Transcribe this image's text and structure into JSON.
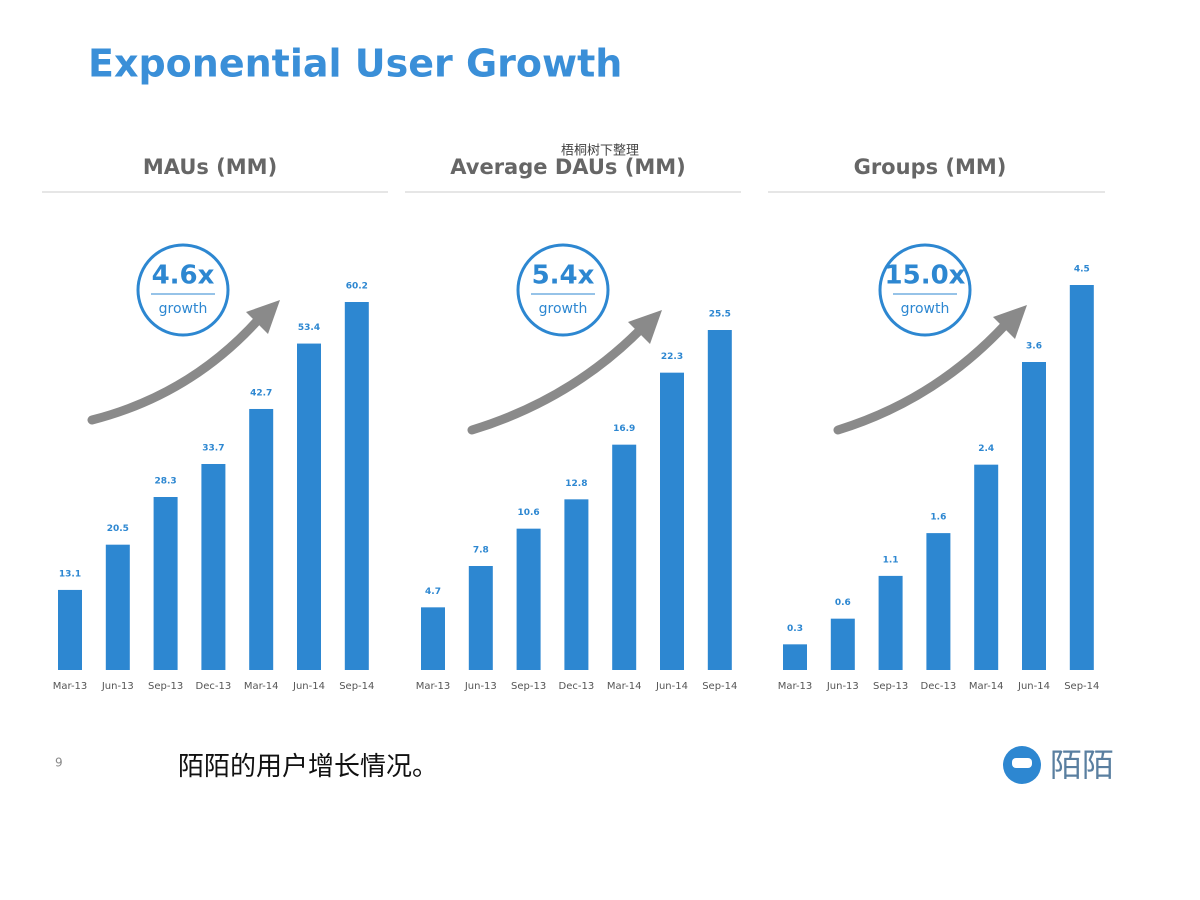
{
  "title": "Exponential User Growth",
  "watermark": "梧桐树下整理",
  "page_number": "9",
  "caption": "陌陌的用户增长情况。",
  "logo": "陌陌",
  "chart_data": [
    {
      "type": "bar",
      "title": "MAUs (MM)",
      "badge": "4.6x",
      "badge_caption": "growth",
      "color": "#2d87d1",
      "categories": [
        "Mar-13",
        "Jun-13",
        "Sep-13",
        "Dec-13",
        "Mar-14",
        "Jun-14",
        "Sep-14"
      ],
      "values": [
        13.1,
        20.5,
        28.3,
        33.7,
        42.7,
        53.4,
        60.2
      ]
    },
    {
      "type": "bar",
      "title": "Average DAUs (MM)",
      "badge": "5.4x",
      "badge_caption": "growth",
      "color": "#2d87d1",
      "categories": [
        "Mar-13",
        "Jun-13",
        "Sep-13",
        "Dec-13",
        "Mar-14",
        "Jun-14",
        "Sep-14"
      ],
      "values": [
        4.7,
        7.8,
        10.6,
        12.8,
        16.9,
        22.3,
        25.5
      ]
    },
    {
      "type": "bar",
      "title": "Groups (MM)",
      "badge": "15.0x",
      "badge_caption": "growth",
      "color": "#2d87d1",
      "categories": [
        "Mar-13",
        "Jun-13",
        "Sep-13",
        "Dec-13",
        "Mar-14",
        "Jun-14",
        "Sep-14"
      ],
      "values": [
        0.3,
        0.6,
        1.1,
        1.6,
        2.4,
        3.6,
        4.5
      ]
    }
  ]
}
